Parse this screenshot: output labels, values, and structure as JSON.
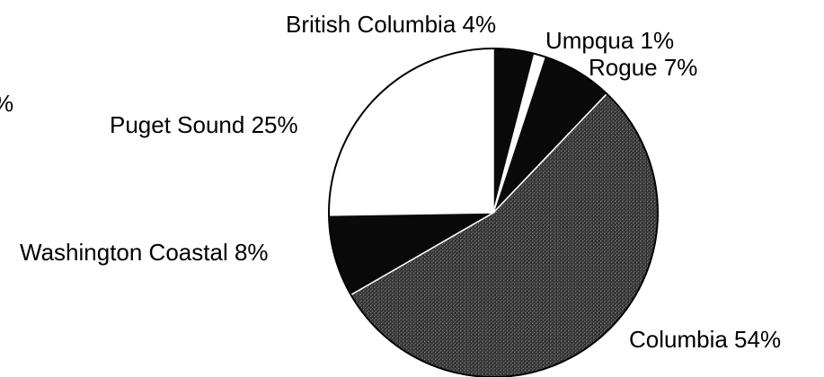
{
  "chart_data": {
    "type": "pie",
    "slices": [
      {
        "label": "British Columbia 4%",
        "value": 4,
        "color": "#0a0a0a"
      },
      {
        "label": "Umpqua 1%",
        "value": 1,
        "color": "#ffffff"
      },
      {
        "label": "Rogue 7%",
        "value": 7,
        "color": "#0a0a0a"
      },
      {
        "label": "Columbia 54%",
        "value": 54,
        "color": "#3a3a3a",
        "pattern": "stipple"
      },
      {
        "label": "Washington Coastal 8%",
        "value": 8,
        "color": "#0a0a0a"
      },
      {
        "label": "Puget Sound 25%",
        "value": 25,
        "color": "#ffffff"
      }
    ],
    "start_angle_deg": 0,
    "direction": "clockwise",
    "legend": "none",
    "edge_fragment": "%"
  }
}
